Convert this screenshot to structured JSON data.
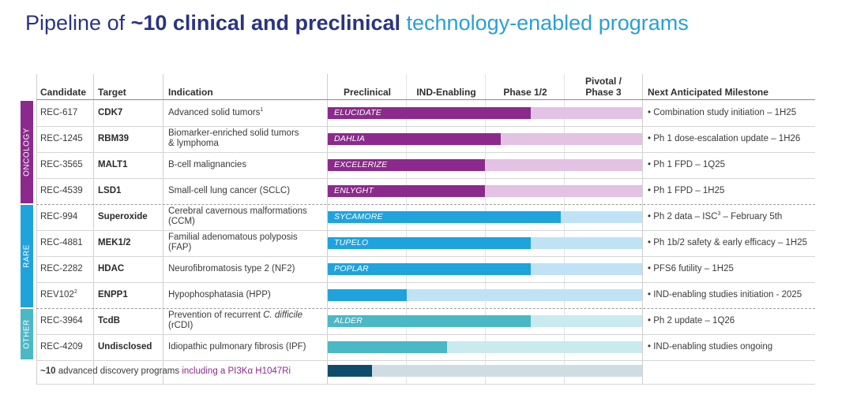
{
  "title": {
    "part1": "Pipeline of ",
    "part2": "~10 clinical and preclinical",
    "part3": " technology-enabled programs"
  },
  "headers": {
    "candidate": "Candidate",
    "target": "Target",
    "indication": "Indication",
    "preclinical": "Preclinical",
    "ind_enabling": "IND-Enabling",
    "phase12": "Phase 1/2",
    "pivotal_line1": "Pivotal /",
    "pivotal_line2": "Phase 3",
    "milestone": "Next Anticipated Milestone"
  },
  "groups": [
    {
      "label": "ONCOLOGY",
      "color": "#8b2a8c"
    },
    {
      "label": "RARE",
      "color": "#1fa3dd"
    },
    {
      "label": "OTHER",
      "color": "#4ab8c5"
    }
  ],
  "colors": {
    "oncology_fill": "#8b2a8c",
    "oncology_track": "#e3c2e3",
    "rare_fill": "#1fa3dd",
    "rare_track": "#bfe3f5",
    "other_fill": "#4ab8c5",
    "other_track": "#c9eaee",
    "discovery_fill": "#0f4c6b",
    "discovery_track": "#cfdde3",
    "discovery_highlight": "#8b2a8c"
  },
  "rows": [
    {
      "candidate": "REC-617",
      "candidate_sup": "",
      "target": "CDK7",
      "indication": "Advanced solid tumors",
      "indication_sup": "1",
      "indication_line2": "",
      "program": "ELUCIDATE",
      "progress": 0.645,
      "milestone": "Combination study initiation – 1H25",
      "milestone_sup": "",
      "milestone_tail": ""
    },
    {
      "candidate": "REC-1245",
      "candidate_sup": "",
      "target": "RBM39",
      "indication": "Biomarker-enriched solid tumors",
      "indication_sup": "",
      "indication_line2": "& lymphoma",
      "program": "DAHLIA",
      "progress": 0.55,
      "milestone": "Ph 1 dose-escalation update – 1H26",
      "milestone_sup": "",
      "milestone_tail": ""
    },
    {
      "candidate": "REC-3565",
      "candidate_sup": "",
      "target": "MALT1",
      "indication": "B-cell malignancies",
      "indication_sup": "",
      "indication_line2": "",
      "program": "EXCELERIZE",
      "progress": 0.5,
      "milestone": "Ph 1 FPD – 1Q25",
      "milestone_sup": "",
      "milestone_tail": ""
    },
    {
      "candidate": "REC-4539",
      "candidate_sup": "",
      "target": "LSD1",
      "indication": "Small-cell lung cancer (SCLC)",
      "indication_sup": "",
      "indication_line2": "",
      "program": "ENLYGHT",
      "progress": 0.5,
      "milestone": "Ph 1 FPD – 1H25",
      "milestone_sup": "",
      "milestone_tail": ""
    },
    {
      "candidate": "REC-994",
      "candidate_sup": "",
      "target": "Superoxide",
      "indication": "Cerebral cavernous malformations",
      "indication_sup": "",
      "indication_line2": "(CCM)",
      "program": "SYCAMORE",
      "progress": 0.74,
      "milestone": "Ph 2 data – ISC",
      "milestone_sup": "3",
      "milestone_tail": " – February 5th"
    },
    {
      "candidate": "REC-4881",
      "candidate_sup": "",
      "target": "MEK1/2",
      "indication": "Familial adenomatous polyposis",
      "indication_sup": "",
      "indication_line2": "(FAP)",
      "program": "TUPELO",
      "progress": 0.645,
      "milestone": "Ph 1b/2 safety & early efficacy – 1H25",
      "milestone_sup": "",
      "milestone_tail": ""
    },
    {
      "candidate": "REC-2282",
      "candidate_sup": "",
      "target": "HDAC",
      "indication": "Neurofibromatosis type 2 (NF2)",
      "indication_sup": "",
      "indication_line2": "",
      "program": "POPLAR",
      "progress": 0.645,
      "milestone": "PFS6 futility – 1H25",
      "milestone_sup": "",
      "milestone_tail": ""
    },
    {
      "candidate": "REV102",
      "candidate_sup": "2",
      "target": "ENPP1",
      "indication": "Hypophosphatasia (HPP)",
      "indication_sup": "",
      "indication_line2": "",
      "program": "",
      "progress": 0.25,
      "milestone": "IND-enabling studies initiation - 2025",
      "milestone_sup": "",
      "milestone_tail": ""
    },
    {
      "candidate": "REC-3964",
      "candidate_sup": "",
      "target": "TcdB",
      "indication": "Prevention of recurrent ",
      "indication_italic": "C. difficile",
      "indication_sup": "",
      "indication_line2": "(rCDI)",
      "program": "ALDER",
      "progress": 0.645,
      "milestone": "Ph 2 update – 1Q26",
      "milestone_sup": "",
      "milestone_tail": ""
    },
    {
      "candidate": "REC-4209",
      "candidate_sup": "",
      "target": "Undisclosed",
      "indication": "Idiopathic pulmonary fibrosis (IPF)",
      "indication_sup": "",
      "indication_line2": "",
      "program": "",
      "progress": 0.38,
      "milestone": "IND-enabling studies ongoing",
      "milestone_sup": "",
      "milestone_tail": ""
    }
  ],
  "discovery": {
    "bold": "~10",
    "text": " advanced discovery programs ",
    "highlight": "including a PI3Kα H1047Ri",
    "progress": 0.14
  }
}
